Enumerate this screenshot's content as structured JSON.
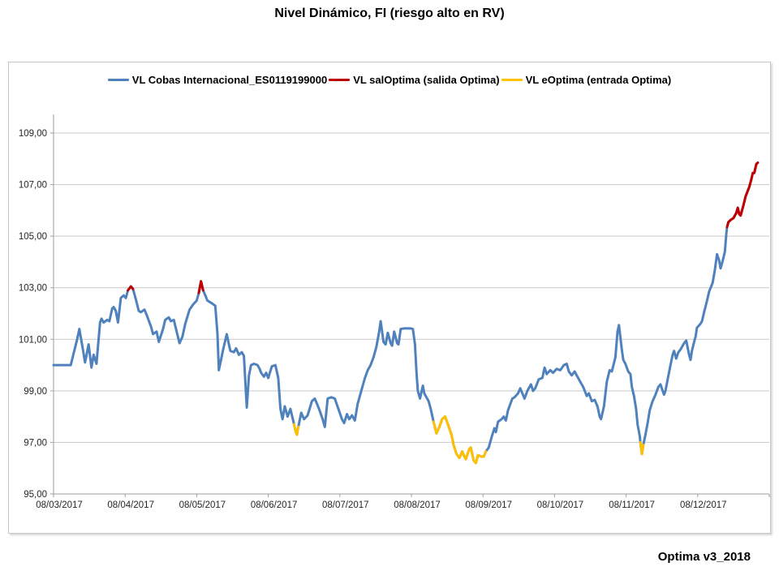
{
  "page": {
    "title": "Nivel Dinámico, FI (riesgo alto en RV)",
    "footer": "Optima v3_2018"
  },
  "legend": {
    "items": [
      {
        "label": "VL Cobas Internacional_ES0119199000",
        "color": "#4F81BD"
      },
      {
        "label": "VL salOptima (salida Optima)",
        "color": "#C00000"
      },
      {
        "label": "VL eOptima (entrada Optima)",
        "color": "#FFC000"
      }
    ]
  },
  "chart_data": {
    "type": "line",
    "title": "Nivel Dinámico, FI (riesgo alto en RV)",
    "legend_position": "top",
    "grid": "horizontal-only",
    "ylim": [
      95,
      109
    ],
    "y_ticks": [
      {
        "value": 95,
        "label": "95,00"
      },
      {
        "value": 97,
        "label": "97,00"
      },
      {
        "value": 99,
        "label": "99,00"
      },
      {
        "value": 101,
        "label": "101,00"
      },
      {
        "value": 103,
        "label": "103,00"
      },
      {
        "value": 105,
        "label": "105,00"
      },
      {
        "value": 107,
        "label": "107,00"
      },
      {
        "value": 109,
        "label": "109,00"
      }
    ],
    "x_tick_labels": [
      "08/03/2017",
      "08/04/2017",
      "08/05/2017",
      "08/06/2017",
      "08/07/2017",
      "08/08/2017",
      "08/09/2017",
      "08/10/2017",
      "08/11/2017",
      "08/12/2017"
    ],
    "series": [
      {
        "name": "VL Cobas Internacional_ES0119199000",
        "color": "#4F81BD",
        "role": "base-path",
        "points": [
          [
            0.0,
            100.0
          ],
          [
            0.024,
            100.0
          ],
          [
            0.028,
            100.45
          ],
          [
            0.033,
            101.0
          ],
          [
            0.036,
            101.4
          ],
          [
            0.041,
            100.6
          ],
          [
            0.044,
            100.1
          ],
          [
            0.049,
            100.8
          ],
          [
            0.053,
            99.9
          ],
          [
            0.056,
            100.4
          ],
          [
            0.06,
            100.05
          ],
          [
            0.065,
            101.65
          ],
          [
            0.067,
            101.8
          ],
          [
            0.07,
            101.65
          ],
          [
            0.075,
            101.75
          ],
          [
            0.078,
            101.7
          ],
          [
            0.082,
            102.2
          ],
          [
            0.084,
            102.25
          ],
          [
            0.087,
            102.1
          ],
          [
            0.09,
            101.65
          ],
          [
            0.094,
            102.6
          ],
          [
            0.098,
            102.7
          ],
          [
            0.101,
            102.6
          ],
          [
            0.104,
            102.9
          ],
          [
            0.108,
            103.05
          ],
          [
            0.111,
            102.95
          ],
          [
            0.115,
            102.55
          ],
          [
            0.119,
            102.1
          ],
          [
            0.122,
            102.05
          ],
          [
            0.127,
            102.15
          ],
          [
            0.13,
            101.95
          ],
          [
            0.136,
            101.5
          ],
          [
            0.139,
            101.2
          ],
          [
            0.144,
            101.3
          ],
          [
            0.147,
            100.9
          ],
          [
            0.153,
            101.4
          ],
          [
            0.156,
            101.75
          ],
          [
            0.161,
            101.85
          ],
          [
            0.164,
            101.7
          ],
          [
            0.168,
            101.75
          ],
          [
            0.172,
            101.3
          ],
          [
            0.176,
            100.85
          ],
          [
            0.18,
            101.1
          ],
          [
            0.184,
            101.6
          ],
          [
            0.19,
            102.15
          ],
          [
            0.195,
            102.35
          ],
          [
            0.2,
            102.5
          ],
          [
            0.203,
            102.8
          ],
          [
            0.206,
            103.25
          ],
          [
            0.209,
            102.9
          ],
          [
            0.212,
            102.7
          ],
          [
            0.215,
            102.5
          ],
          [
            0.221,
            102.4
          ],
          [
            0.226,
            102.3
          ],
          [
            0.229,
            101.2
          ],
          [
            0.231,
            99.8
          ],
          [
            0.237,
            100.6
          ],
          [
            0.242,
            101.2
          ],
          [
            0.245,
            100.8
          ],
          [
            0.247,
            100.55
          ],
          [
            0.252,
            100.5
          ],
          [
            0.255,
            100.65
          ],
          [
            0.259,
            100.4
          ],
          [
            0.263,
            100.5
          ],
          [
            0.266,
            100.35
          ],
          [
            0.27,
            98.35
          ],
          [
            0.273,
            99.6
          ],
          [
            0.276,
            100.0
          ],
          [
            0.28,
            100.05
          ],
          [
            0.285,
            100.0
          ],
          [
            0.288,
            99.85
          ],
          [
            0.29,
            99.7
          ],
          [
            0.294,
            99.55
          ],
          [
            0.297,
            99.7
          ],
          [
            0.3,
            99.5
          ],
          [
            0.305,
            99.95
          ],
          [
            0.31,
            100.0
          ],
          [
            0.314,
            99.5
          ],
          [
            0.317,
            98.3
          ],
          [
            0.32,
            97.9
          ],
          [
            0.323,
            98.4
          ],
          [
            0.327,
            98.0
          ],
          [
            0.331,
            98.3
          ],
          [
            0.336,
            97.7
          ],
          [
            0.338,
            97.45
          ],
          [
            0.34,
            97.3
          ],
          [
            0.342,
            97.6
          ],
          [
            0.346,
            98.15
          ],
          [
            0.35,
            97.9
          ],
          [
            0.355,
            98.05
          ],
          [
            0.361,
            98.6
          ],
          [
            0.365,
            98.7
          ],
          [
            0.371,
            98.3
          ],
          [
            0.376,
            97.9
          ],
          [
            0.379,
            97.6
          ],
          [
            0.383,
            98.7
          ],
          [
            0.388,
            98.75
          ],
          [
            0.393,
            98.7
          ],
          [
            0.398,
            98.3
          ],
          [
            0.403,
            97.9
          ],
          [
            0.406,
            97.75
          ],
          [
            0.41,
            98.1
          ],
          [
            0.413,
            97.9
          ],
          [
            0.417,
            98.05
          ],
          [
            0.421,
            97.85
          ],
          [
            0.425,
            98.5
          ],
          [
            0.431,
            99.1
          ],
          [
            0.435,
            99.5
          ],
          [
            0.439,
            99.8
          ],
          [
            0.443,
            100.0
          ],
          [
            0.447,
            100.3
          ],
          [
            0.451,
            100.7
          ],
          [
            0.455,
            101.3
          ],
          [
            0.457,
            101.7
          ],
          [
            0.461,
            100.9
          ],
          [
            0.464,
            100.8
          ],
          [
            0.467,
            101.25
          ],
          [
            0.471,
            100.85
          ],
          [
            0.473,
            100.75
          ],
          [
            0.476,
            101.3
          ],
          [
            0.48,
            100.85
          ],
          [
            0.482,
            100.8
          ],
          [
            0.485,
            101.4
          ],
          [
            0.49,
            101.42
          ],
          [
            0.495,
            101.42
          ],
          [
            0.499,
            101.42
          ],
          [
            0.502,
            101.4
          ],
          [
            0.505,
            100.8
          ],
          [
            0.507,
            99.75
          ],
          [
            0.509,
            99.0
          ],
          [
            0.512,
            98.7
          ],
          [
            0.516,
            99.2
          ],
          [
            0.518,
            98.9
          ],
          [
            0.521,
            98.75
          ],
          [
            0.524,
            98.6
          ],
          [
            0.527,
            98.3
          ],
          [
            0.531,
            97.8
          ],
          [
            0.535,
            97.35
          ],
          [
            0.539,
            97.6
          ],
          [
            0.543,
            97.9
          ],
          [
            0.547,
            98.0
          ],
          [
            0.551,
            97.7
          ],
          [
            0.556,
            97.3
          ],
          [
            0.559,
            96.9
          ],
          [
            0.563,
            96.55
          ],
          [
            0.567,
            96.4
          ],
          [
            0.571,
            96.65
          ],
          [
            0.574,
            96.45
          ],
          [
            0.576,
            96.35
          ],
          [
            0.581,
            96.75
          ],
          [
            0.583,
            96.8
          ],
          [
            0.587,
            96.3
          ],
          [
            0.59,
            96.2
          ],
          [
            0.593,
            96.5
          ],
          [
            0.598,
            96.45
          ],
          [
            0.601,
            96.45
          ],
          [
            0.604,
            96.65
          ],
          [
            0.608,
            96.8
          ],
          [
            0.612,
            97.2
          ],
          [
            0.616,
            97.55
          ],
          [
            0.618,
            97.4
          ],
          [
            0.621,
            97.8
          ],
          [
            0.626,
            97.9
          ],
          [
            0.629,
            98.0
          ],
          [
            0.632,
            97.85
          ],
          [
            0.635,
            98.25
          ],
          [
            0.641,
            98.7
          ],
          [
            0.644,
            98.75
          ],
          [
            0.649,
            98.9
          ],
          [
            0.652,
            99.1
          ],
          [
            0.658,
            98.7
          ],
          [
            0.662,
            99.0
          ],
          [
            0.667,
            99.25
          ],
          [
            0.67,
            99.0
          ],
          [
            0.673,
            99.1
          ],
          [
            0.678,
            99.45
          ],
          [
            0.683,
            99.5
          ],
          [
            0.686,
            99.9
          ],
          [
            0.689,
            99.65
          ],
          [
            0.694,
            99.8
          ],
          [
            0.698,
            99.7
          ],
          [
            0.703,
            99.85
          ],
          [
            0.708,
            99.8
          ],
          [
            0.713,
            100.0
          ],
          [
            0.717,
            100.05
          ],
          [
            0.72,
            99.75
          ],
          [
            0.724,
            99.6
          ],
          [
            0.728,
            99.75
          ],
          [
            0.732,
            99.55
          ],
          [
            0.737,
            99.3
          ],
          [
            0.74,
            99.15
          ],
          [
            0.745,
            98.8
          ],
          [
            0.748,
            98.9
          ],
          [
            0.752,
            98.6
          ],
          [
            0.756,
            98.65
          ],
          [
            0.76,
            98.4
          ],
          [
            0.763,
            98.0
          ],
          [
            0.765,
            97.9
          ],
          [
            0.769,
            98.4
          ],
          [
            0.773,
            99.35
          ],
          [
            0.777,
            99.8
          ],
          [
            0.78,
            99.75
          ],
          [
            0.785,
            100.3
          ],
          [
            0.788,
            101.3
          ],
          [
            0.79,
            101.55
          ],
          [
            0.794,
            100.6
          ],
          [
            0.796,
            100.2
          ],
          [
            0.799,
            100.05
          ],
          [
            0.803,
            99.75
          ],
          [
            0.806,
            99.65
          ],
          [
            0.808,
            99.15
          ],
          [
            0.811,
            98.8
          ],
          [
            0.814,
            98.3
          ],
          [
            0.816,
            97.7
          ],
          [
            0.819,
            97.25
          ],
          [
            0.82,
            97.0
          ],
          [
            0.822,
            96.55
          ],
          [
            0.824,
            96.9
          ],
          [
            0.827,
            97.3
          ],
          [
            0.83,
            97.75
          ],
          [
            0.833,
            98.25
          ],
          [
            0.837,
            98.6
          ],
          [
            0.841,
            98.85
          ],
          [
            0.845,
            99.15
          ],
          [
            0.848,
            99.25
          ],
          [
            0.853,
            98.85
          ],
          [
            0.855,
            99.0
          ],
          [
            0.858,
            99.45
          ],
          [
            0.862,
            100.0
          ],
          [
            0.865,
            100.4
          ],
          [
            0.867,
            100.55
          ],
          [
            0.87,
            100.25
          ],
          [
            0.873,
            100.5
          ],
          [
            0.876,
            100.6
          ],
          [
            0.881,
            100.85
          ],
          [
            0.884,
            100.95
          ],
          [
            0.888,
            100.4
          ],
          [
            0.89,
            100.2
          ],
          [
            0.892,
            100.55
          ],
          [
            0.895,
            100.9
          ],
          [
            0.897,
            101.1
          ],
          [
            0.899,
            101.45
          ],
          [
            0.904,
            101.6
          ],
          [
            0.906,
            101.7
          ],
          [
            0.909,
            102.05
          ],
          [
            0.913,
            102.5
          ],
          [
            0.916,
            102.85
          ],
          [
            0.921,
            103.2
          ],
          [
            0.924,
            103.7
          ],
          [
            0.927,
            104.3
          ],
          [
            0.93,
            104.05
          ],
          [
            0.932,
            103.75
          ],
          [
            0.935,
            104.05
          ],
          [
            0.938,
            104.4
          ],
          [
            0.94,
            105.1
          ],
          [
            0.941,
            105.35
          ],
          [
            0.943,
            105.55
          ],
          [
            0.947,
            105.65
          ],
          [
            0.95,
            105.7
          ],
          [
            0.954,
            105.9
          ],
          [
            0.956,
            106.1
          ],
          [
            0.958,
            105.85
          ],
          [
            0.96,
            105.8
          ],
          [
            0.964,
            106.2
          ],
          [
            0.967,
            106.55
          ],
          [
            0.972,
            106.9
          ],
          [
            0.975,
            107.2
          ],
          [
            0.977,
            107.45
          ],
          [
            0.979,
            107.45
          ],
          [
            0.982,
            107.8
          ],
          [
            0.984,
            107.85
          ]
        ]
      }
    ],
    "overlay_segments": [
      {
        "series": "VL salOptima (salida Optima)",
        "color": "#C00000",
        "from": 0.1035,
        "to": 0.1115
      },
      {
        "series": "VL salOptima (salida Optima)",
        "color": "#C00000",
        "from": 0.2025,
        "to": 0.2095
      },
      {
        "series": "VL eOptima (entrada Optima)",
        "color": "#FFC000",
        "from": 0.3355,
        "to": 0.3435
      },
      {
        "series": "VL eOptima (entrada Optima)",
        "color": "#FFC000",
        "from": 0.5295,
        "to": 0.6055
      },
      {
        "series": "VL eOptima (entrada Optima)",
        "color": "#FFC000",
        "from": 0.8195,
        "to": 0.8245
      },
      {
        "series": "VL salOptima (salida Optima)",
        "color": "#C00000",
        "from": 0.9405,
        "to": 1.0
      }
    ]
  }
}
